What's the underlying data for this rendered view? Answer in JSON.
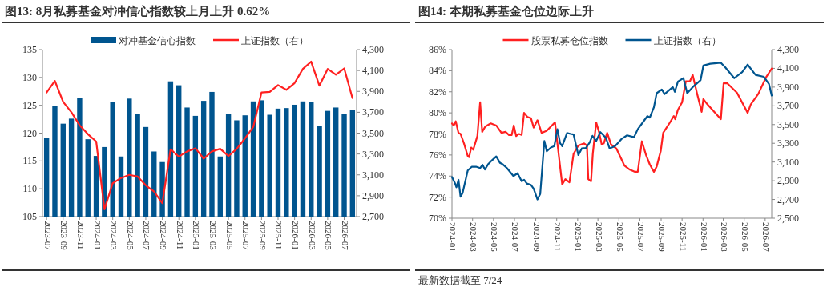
{
  "chart_data": [
    {
      "type": "bar",
      "title": "图13:  8月私募基金对冲信心指数较上月上升 0.62%",
      "legend": "top",
      "categories": [
        "2023-07",
        null,
        "2023-09",
        null,
        "2023-11",
        null,
        "2024-01",
        null,
        "2024-03",
        null,
        "2024-05",
        null,
        "2024-07",
        null,
        "2024-09",
        null,
        "2024-11",
        null,
        "2025-01",
        null,
        "2025-03",
        null,
        "2025-05",
        null,
        "2025-07",
        null,
        "2025-09",
        null,
        "2025-11",
        null,
        "2026-01",
        null,
        "2026-03",
        null,
        "2026-05",
        null,
        "2026-07",
        null
      ],
      "ylim": [
        105,
        135
      ],
      "yticks": [
        105,
        110,
        115,
        120,
        125,
        130,
        135
      ],
      "y2lim": [
        2700,
        4300
      ],
      "y2ticks": [
        {
          "value": 2700,
          "label": "2,700"
        },
        {
          "value": 2900,
          "label": "2,900"
        },
        {
          "value": 3100,
          "label": "3,100"
        },
        {
          "value": 3300,
          "label": "3,300"
        },
        {
          "value": 3500,
          "label": "3,500"
        },
        {
          "value": 3700,
          "label": "3,700"
        },
        {
          "value": 3900,
          "label": "3,900"
        },
        {
          "value": 4100,
          "label": "4,100"
        },
        {
          "value": 4300,
          "label": "4,300"
        }
      ],
      "series": [
        {
          "name": "对冲基金信心指数",
          "color": "#00558f",
          "values": [
            119.2,
            124.9,
            121.7,
            122.6,
            126.3,
            118.9,
            115.9,
            117.5,
            125.6,
            115.8,
            126.2,
            123.4,
            121.1,
            116.7,
            114.8,
            129.3,
            128.6,
            124.6,
            123.1,
            125.8,
            127.4,
            115.8,
            123.4,
            122.3,
            123.2,
            125.7,
            125.9,
            123.3,
            124.4,
            124.5,
            125.1,
            125.7,
            125.6,
            121.3,
            124.0,
            124.6,
            123.5,
            124.2
          ]
        },
        {
          "name": "上证指数（右）",
          "type": "line",
          "axis": "y2",
          "color": "#ff2020",
          "values": [
            3890,
            4000,
            3800,
            3700,
            3575,
            3490,
            3420,
            2770,
            3020,
            3070,
            3100,
            3085,
            3000,
            2940,
            2830,
            3345,
            3275,
            3325,
            3355,
            3255,
            3325,
            3350,
            3280,
            3350,
            3450,
            3560,
            3890,
            3895,
            3960,
            3915,
            3980,
            4115,
            4185,
            3955,
            4115,
            4060,
            4120,
            3835
          ]
        }
      ]
    },
    {
      "type": "line",
      "title": "图14:  本期私募基金仓位边际上升",
      "legend": "top",
      "xlim": [
        "2024-01-01",
        "2026-07-20"
      ],
      "xticks": [
        {
          "value": "2024-01-01",
          "label": "2024-01"
        },
        {
          "value": "2024-03-01",
          "label": "2024-03"
        },
        {
          "value": "2024-05-01",
          "label": "2024-05"
        },
        {
          "value": "2024-07-01",
          "label": "2024-07"
        },
        {
          "value": "2024-09-01",
          "label": "2024-09"
        },
        {
          "value": "2024-11-01",
          "label": "2024-11"
        },
        {
          "value": "2025-01-01",
          "label": "2025-01"
        },
        {
          "value": "2025-03-01",
          "label": "2025-03"
        },
        {
          "value": "2025-05-01",
          "label": "2025-05"
        },
        {
          "value": "2025-07-01",
          "label": "2025-07"
        },
        {
          "value": "2025-09-01",
          "label": "2025-09"
        },
        {
          "value": "2025-11-01",
          "label": "2025-11"
        },
        {
          "value": "2026-01-01",
          "label": "2026-01"
        },
        {
          "value": "2026-03-01",
          "label": "2026-03"
        },
        {
          "value": "2026-05-01",
          "label": "2026-05"
        },
        {
          "value": "2026-07-01",
          "label": "2026-07"
        }
      ],
      "ylim": [
        70,
        86
      ],
      "yticks": [
        {
          "value": 70,
          "label": "70%"
        },
        {
          "value": 72,
          "label": "72%"
        },
        {
          "value": 74,
          "label": "74%"
        },
        {
          "value": 76,
          "label": "76%"
        },
        {
          "value": 78,
          "label": "78%"
        },
        {
          "value": 80,
          "label": "80%"
        },
        {
          "value": 82,
          "label": "82%"
        },
        {
          "value": 84,
          "label": "84%"
        },
        {
          "value": 86,
          "label": "86%"
        }
      ],
      "y2lim": [
        2500,
        4300
      ],
      "y2ticks": [
        {
          "value": 2500,
          "label": "2,500"
        },
        {
          "value": 2700,
          "label": "2,700"
        },
        {
          "value": 2900,
          "label": "2,900"
        },
        {
          "value": 3100,
          "label": "3,100"
        },
        {
          "value": 3300,
          "label": "3,300"
        },
        {
          "value": 3500,
          "label": "3,500"
        },
        {
          "value": 3700,
          "label": "3,700"
        },
        {
          "value": 3900,
          "label": "3,900"
        },
        {
          "value": 4100,
          "label": "4,100"
        },
        {
          "value": 4300,
          "label": "4,300"
        }
      ],
      "annotations": [
        "最新数据截至 7/24"
      ],
      "series": [
        {
          "name": "股票私募仓位指数",
          "color": "#ff2020",
          "x": [
            "2024-01-01",
            "2024-01-06",
            "2024-01-12",
            "2024-01-20",
            "2024-01-26",
            "2024-02-05",
            "2024-02-16",
            "2024-02-20",
            "2024-02-26",
            "2024-03-03",
            "2024-03-15",
            "2024-03-23",
            "2024-03-29",
            "2024-04-07",
            "2024-04-23",
            "2024-05-09",
            "2024-05-24",
            "2024-06-05",
            "2024-06-15",
            "2024-06-23",
            "2024-06-29",
            "2024-07-06",
            "2024-07-14",
            "2024-07-22",
            "2024-07-29",
            "2024-08-08",
            "2024-08-18",
            "2024-08-26",
            "2024-09-06",
            "2024-09-18",
            "2024-10-03",
            "2024-10-27",
            "2024-11-03",
            "2024-11-17",
            "2024-11-26",
            "2024-12-08",
            "2024-12-20",
            "2025-01-03",
            "2025-01-20",
            "2025-01-28",
            "2025-02-01",
            "2025-02-09",
            "2025-02-14",
            "2025-02-24",
            "2025-03-04",
            "2025-03-12",
            "2025-03-18",
            "2025-03-28",
            "2025-04-08",
            "2025-04-24",
            "2025-05-17",
            "2025-06-02",
            "2025-06-17",
            "2025-06-25",
            "2025-07-07",
            "2025-07-19",
            "2025-07-30",
            "2025-08-11",
            "2025-08-19",
            "2025-08-31",
            "2025-09-07",
            "2025-09-27",
            "2025-10-08",
            "2025-10-12",
            "2025-10-20",
            "2025-11-01",
            "2025-11-12",
            "2025-11-24",
            "2025-12-02",
            "2025-12-15",
            "2025-12-28",
            "2026-01-02",
            "2026-01-14",
            "2026-02-22",
            "2026-03-02",
            "2026-03-13",
            "2026-04-10",
            "2026-05-11",
            "2026-05-20",
            "2026-06-11",
            "2026-07-04",
            "2026-07-20"
          ],
          "values": [
            79.0,
            78.8,
            79.2,
            78.1,
            78.0,
            77.1,
            75.9,
            75.8,
            76.7,
            76.5,
            77.8,
            81.0,
            78.2,
            78.7,
            79.0,
            78.8,
            78.1,
            78.2,
            77.9,
            77.9,
            78.8,
            77.8,
            78.0,
            77.9,
            80.0,
            79.6,
            79.5,
            78.6,
            79.3,
            78.1,
            78.3,
            79.1,
            77.1,
            73.2,
            73.7,
            73.4,
            76.1,
            76.9,
            77.1,
            76.9,
            73.7,
            73.5,
            76.1,
            79.1,
            78.2,
            77.0,
            77.1,
            78.1,
            77.0,
            76.6,
            75.0,
            74.6,
            74.4,
            74.4,
            77.3,
            76.0,
            75.1,
            74.4,
            74.9,
            76.4,
            78.1,
            79.1,
            79.7,
            79.4,
            80.3,
            81.0,
            83.0,
            83.0,
            83.6,
            81.8,
            80.1,
            81.3,
            80.8,
            79.4,
            82.8,
            82.8,
            81.9,
            80.0,
            80.8,
            81.8,
            83.4,
            84.2
          ]
        },
        {
          "name": "上证指数（右）",
          "color": "#00558f",
          "axis": "y2",
          "x": [
            "2024-01-01",
            "2024-01-09",
            "2024-01-14",
            "2024-01-20",
            "2024-01-26",
            "2024-02-01",
            "2024-02-16",
            "2024-02-28",
            "2024-03-11",
            "2024-03-23",
            "2024-03-30",
            "2024-04-06",
            "2024-04-15",
            "2024-04-27",
            "2024-05-09",
            "2024-05-20",
            "2024-05-28",
            "2024-06-09",
            "2024-06-28",
            "2024-07-10",
            "2024-07-22",
            "2024-07-29",
            "2024-08-06",
            "2024-08-18",
            "2024-08-26",
            "2024-09-06",
            "2024-09-14",
            "2024-09-26",
            "2024-10-03",
            "2024-10-15",
            "2024-10-25",
            "2024-11-03",
            "2024-11-11",
            "2024-11-17",
            "2024-12-01",
            "2024-12-12",
            "2024-12-20",
            "2025-01-03",
            "2025-01-13",
            "2025-01-25",
            "2025-02-05",
            "2025-02-13",
            "2025-02-24",
            "2025-03-08",
            "2025-03-24",
            "2025-04-04",
            "2025-04-20",
            "2025-05-10",
            "2025-05-25",
            "2025-06-14",
            "2025-06-25",
            "2025-07-11",
            "2025-07-23",
            "2025-07-30",
            "2025-08-11",
            "2025-08-19",
            "2025-09-03",
            "2025-09-11",
            "2025-10-05",
            "2025-10-11",
            "2025-10-20",
            "2025-11-05",
            "2025-11-16",
            "2025-12-02",
            "2025-12-25",
            "2026-01-02",
            "2026-01-22",
            "2026-02-22",
            "2026-03-06",
            "2026-04-02",
            "2026-04-25",
            "2026-05-11",
            "2026-06-03",
            "2026-06-27",
            "2026-07-12",
            "2026-07-20"
          ],
          "values": [
            2940,
            2880,
            2830,
            2910,
            2730,
            2770,
            3010,
            3050,
            3050,
            3035,
            3070,
            3020,
            3075,
            3120,
            3160,
            3090,
            3075,
            3035,
            2950,
            2980,
            2895,
            2910,
            2870,
            2855,
            2815,
            2700,
            2760,
            3325,
            3215,
            3255,
            3270,
            3450,
            3300,
            3270,
            3410,
            3400,
            3395,
            3175,
            3245,
            3250,
            3310,
            3380,
            3325,
            3420,
            3360,
            3245,
            3270,
            3350,
            3385,
            3365,
            3450,
            3530,
            3590,
            3575,
            3685,
            3835,
            3875,
            3825,
            3900,
            3850,
            3960,
            3995,
            3835,
            3900,
            3975,
            4130,
            4150,
            4160,
            4115,
            3995,
            4060,
            4140,
            4030,
            4010,
            3935,
            3810
          ]
        }
      ]
    }
  ]
}
